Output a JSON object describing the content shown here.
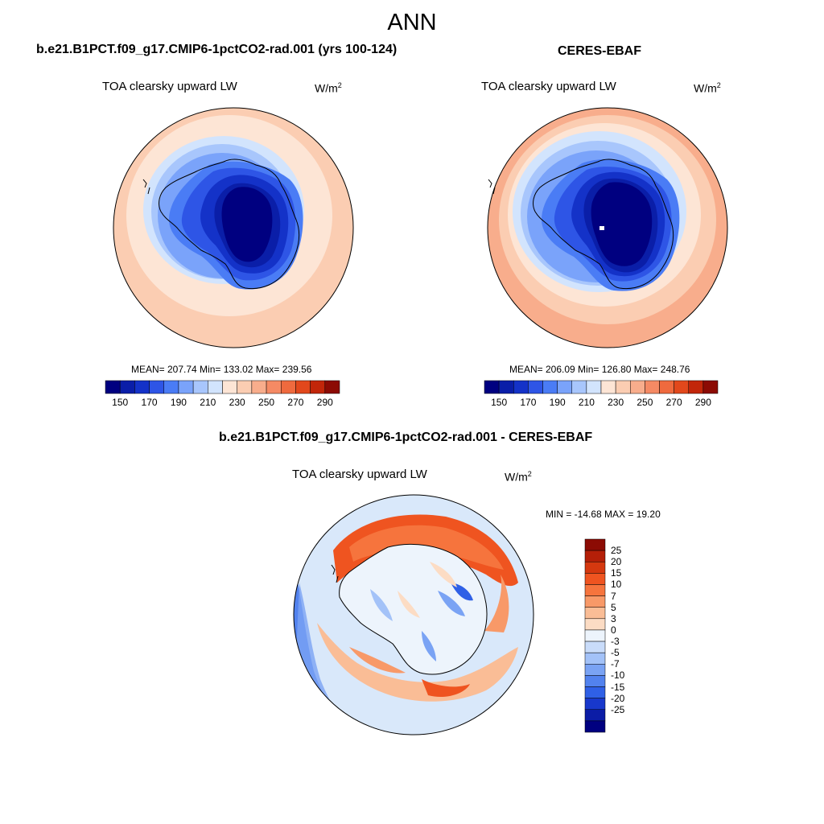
{
  "figure": {
    "title": "ANN"
  },
  "panels": {
    "model": {
      "title": "b.e21.B1PCT.f09_g17.CMIP6-1pctCO2-rad.001 (yrs 100-124)",
      "variable": "TOA clearsky upward LW",
      "units_base": "W/m",
      "units_exp": "2",
      "stats": "MEAN= 207.74  Min= 133.02  Max= 239.56"
    },
    "obs": {
      "title": "CERES-EBAF",
      "variable": "TOA clearsky upward LW",
      "units_base": "W/m",
      "units_exp": "2",
      "stats": "MEAN= 206.09  Min= 126.80  Max= 248.76"
    },
    "diff": {
      "title": "b.e21.B1PCT.f09_g17.CMIP6-1pctCO2-rad.001 - CERES-EBAF",
      "variable": "TOA clearsky upward LW",
      "units_base": "W/m",
      "units_exp": "2",
      "stats": "MIN = -14.68 MAX =  19.20"
    }
  },
  "colorbars": {
    "abs": {
      "colors": [
        "#000080",
        "#0a1ea8",
        "#1432c8",
        "#2e55e6",
        "#4a7cf5",
        "#7aa3fa",
        "#a8c6fc",
        "#d2e4fd",
        "#fde5d5",
        "#fbcdb2",
        "#f8ad8c",
        "#f58a64",
        "#ef6a3e",
        "#e2481c",
        "#c2260a",
        "#8c0b04"
      ],
      "tick_labels": [
        "150",
        "170",
        "190",
        "210",
        "230",
        "250",
        "270",
        "290"
      ]
    },
    "diff": {
      "colors": [
        "#8c0b04",
        "#b41f08",
        "#d5380f",
        "#ef5420",
        "#f6743d",
        "#f89968",
        "#fabd96",
        "#fcdcc4",
        "#edf4fc",
        "#c9dcfa",
        "#a3c2f8",
        "#7aa3f4",
        "#5282ee",
        "#2f60e6",
        "#1838cc",
        "#0b1ca6",
        "#000080"
      ],
      "tick_labels": [
        "25",
        "20",
        "15",
        "10",
        "7",
        "5",
        "3",
        "0",
        "-3",
        "-5",
        "-7",
        "-10",
        "-15",
        "-20",
        "-25"
      ]
    }
  },
  "map_data": {
    "projection": "south-polar-stereographic",
    "region": "Antarctica / Southern Ocean",
    "model_field": {
      "range": [
        133.02,
        239.56
      ],
      "mean": 207.74
    },
    "obs_field": {
      "range": [
        126.8,
        248.76
      ],
      "mean": 206.09
    },
    "diff_field": {
      "range": [
        -14.68,
        19.2
      ]
    }
  }
}
